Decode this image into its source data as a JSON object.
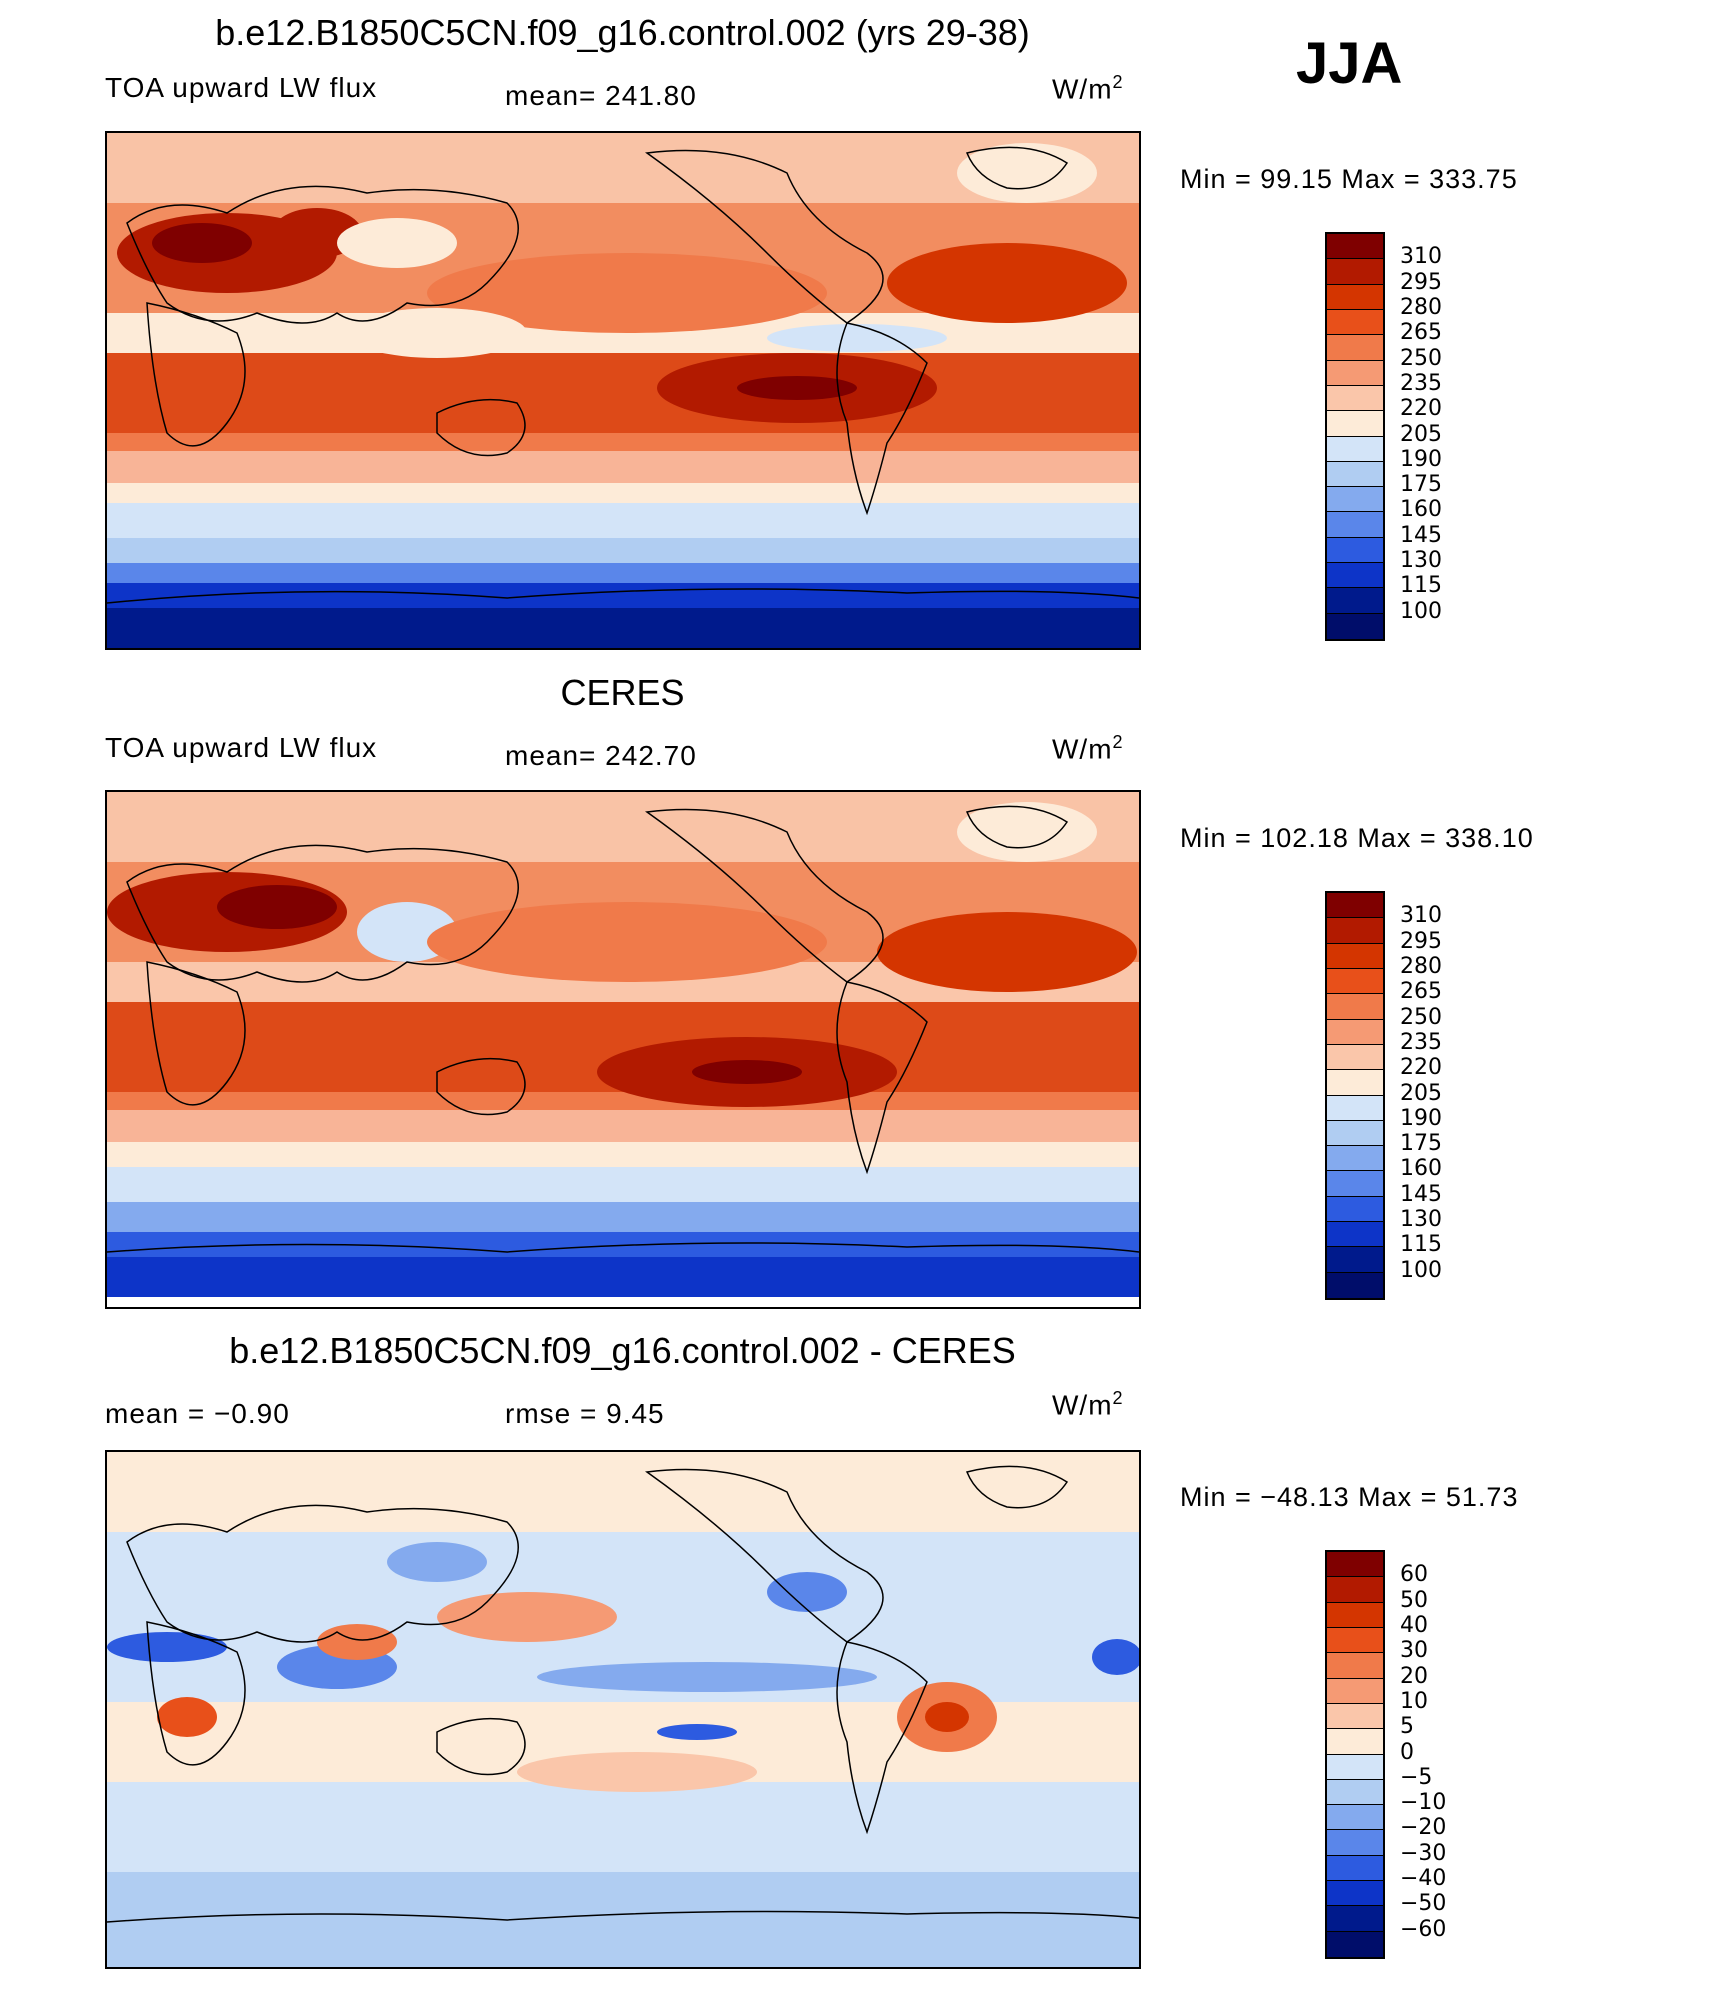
{
  "season": "JJA",
  "panels": [
    {
      "id": "model",
      "title": "b.e12.B1850C5CN.f09_g16.control.002 (yrs 29-38)",
      "left_label": "TOA upward LW flux",
      "mid_label": "mean= 241.80",
      "units": "W/m",
      "units_sup": "2",
      "minmax": "Min =  99.15 Max = 333.75",
      "colorbar_ticks": [
        "310",
        "295",
        "280",
        "265",
        "250",
        "235",
        "220",
        "205",
        "190",
        "175",
        "160",
        "145",
        "130",
        "115",
        "100"
      ]
    },
    {
      "id": "obs",
      "title": "CERES",
      "left_label": "TOA upward LW flux",
      "mid_label": "mean= 242.70",
      "units": "W/m",
      "units_sup": "2",
      "minmax": "Min = 102.18 Max = 338.10",
      "colorbar_ticks": [
        "310",
        "295",
        "280",
        "265",
        "250",
        "235",
        "220",
        "205",
        "190",
        "175",
        "160",
        "145",
        "130",
        "115",
        "100"
      ]
    },
    {
      "id": "diff",
      "title": "b.e12.B1850C5CN.f09_g16.control.002 - CERES",
      "left_label": "mean =   −0.90",
      "mid_label": "rmse =    9.45",
      "units": "W/m",
      "units_sup": "2",
      "minmax": "Min = −48.13 Max =  51.73",
      "colorbar_ticks": [
        "60",
        "50",
        "40",
        "30",
        "20",
        "10",
        "5",
        "0",
        "−5",
        "−10",
        "−20",
        "−30",
        "−40",
        "−50",
        "−60"
      ]
    }
  ],
  "colors": {
    "abs_scale": [
      "#7f0000",
      "#b21a00",
      "#d43500",
      "#e8501a",
      "#f07a4a",
      "#f59a74",
      "#fac6aa",
      "#fdebd8",
      "#d3e4f8",
      "#b0cdf2",
      "#84aaee",
      "#5a86ea",
      "#2d5be0",
      "#0d34c8",
      "#001a8c",
      "#000d6a"
    ],
    "diff_scale": [
      "#7f0000",
      "#b21a00",
      "#d43500",
      "#e8501a",
      "#f07a4a",
      "#f59a74",
      "#fac6aa",
      "#fdebd8",
      "#d3e4f8",
      "#b0cdf2",
      "#84aaee",
      "#5a86ea",
      "#2d5be0",
      "#0d34c8",
      "#001a8c",
      "#000d6a"
    ]
  }
}
